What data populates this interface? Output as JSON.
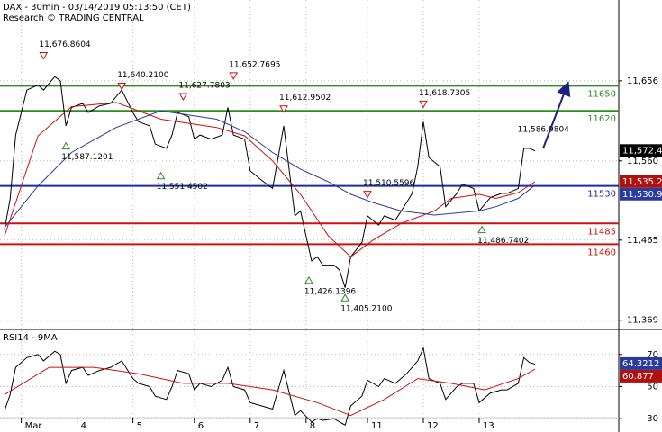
{
  "chart_data": [
    {
      "type": "line",
      "title": "DAX - 30min - 03/14/2019 05:13:50 (CET)",
      "subtitle": "Research © TRADING CENTRAL",
      "xlim": [
        0,
        110
      ],
      "ylim": [
        11359,
        11753
      ],
      "grid": true,
      "yticks": [
        {
          "value": 11656,
          "label": "11,656"
        },
        {
          "value": 11560,
          "label": "11,560"
        },
        {
          "value": 11465,
          "label": "11,465"
        },
        {
          "value": 11369,
          "label": "11,369"
        }
      ],
      "xticks": [
        {
          "value": 3,
          "label": "Mar"
        },
        {
          "value": 13,
          "label": "4"
        },
        {
          "value": 23,
          "label": "5"
        },
        {
          "value": 34,
          "label": "6"
        },
        {
          "value": 44,
          "label": "7"
        },
        {
          "value": 54,
          "label": "8"
        },
        {
          "value": 65,
          "label": "11"
        },
        {
          "value": 75,
          "label": "12"
        },
        {
          "value": 85,
          "label": "13"
        }
      ],
      "series": [
        {
          "color": "#000000",
          "x": [
            0,
            1,
            2,
            4,
            6,
            7,
            9,
            10,
            11,
            12,
            14,
            15,
            17,
            19,
            21,
            23,
            24,
            26,
            27,
            29,
            30,
            31,
            33,
            34,
            35,
            37,
            39,
            40,
            41,
            43,
            44,
            46,
            48,
            49,
            50,
            52,
            53,
            55,
            56,
            57,
            59,
            60,
            61,
            62,
            64,
            65,
            67,
            68,
            70,
            72,
            73,
            74,
            75,
            76,
            78,
            79,
            81,
            82,
            84,
            85,
            87,
            89,
            90,
            92,
            93,
            94,
            95
          ],
          "values": [
            11478,
            11514,
            11591,
            11645,
            11651,
            11645,
            11661,
            11656,
            11602,
            11624,
            11629,
            11618,
            11626,
            11629,
            11645,
            11618,
            11607,
            11602,
            11580,
            11575,
            11591,
            11618,
            11613,
            11586,
            11591,
            11586,
            11591,
            11624,
            11591,
            11586,
            11548,
            11537,
            11527,
            11564,
            11602,
            11494,
            11500,
            11440,
            11445,
            11435,
            11435,
            11429,
            11408,
            11445,
            11462,
            11494,
            11483,
            11494,
            11489,
            11510,
            11521,
            11553,
            11607,
            11564,
            11553,
            11505,
            11521,
            11532,
            11527,
            11500,
            11516,
            11521,
            11521,
            11527,
            11575,
            11575,
            11572
          ]
        },
        {
          "color": "#cc1111",
          "x": [
            0,
            6,
            12,
            20,
            28,
            38,
            43,
            48,
            53,
            58,
            62,
            66,
            71,
            77,
            80,
            85,
            88,
            92,
            95
          ],
          "values": [
            11470,
            11590,
            11625,
            11630,
            11610,
            11600,
            11590,
            11560,
            11520,
            11470,
            11445,
            11465,
            11485,
            11500,
            11515,
            11520,
            11515,
            11522,
            11535
          ]
        },
        {
          "color": "#2b3a9e",
          "x": [
            0,
            6,
            12,
            20,
            28,
            38,
            43,
            48,
            53,
            58,
            62,
            66,
            71,
            77,
            80,
            85,
            88,
            92,
            95
          ],
          "values": [
            11480,
            11530,
            11570,
            11600,
            11620,
            11610,
            11595,
            11570,
            11550,
            11535,
            11520,
            11510,
            11500,
            11495,
            11497,
            11500,
            11505,
            11515,
            11531
          ]
        }
      ],
      "levels": [
        {
          "value": 11650,
          "color": "#2e8b22"
        },
        {
          "value": 11620,
          "color": "#2e8b22"
        },
        {
          "value": 11530,
          "color": "#1a2aa8"
        },
        {
          "value": 11485,
          "color": "#d01010"
        },
        {
          "value": 11460,
          "color": "#d01010"
        }
      ],
      "annotations": [
        {
          "x": 7,
          "value": 11676.8604,
          "label": "11,676.8604",
          "kind": "high"
        },
        {
          "x": 11,
          "value": 11587.1201,
          "label": "11,587.1201",
          "kind": "low"
        },
        {
          "x": 21,
          "value": 11640.21,
          "label": "11,640.2100",
          "kind": "high"
        },
        {
          "x": 28,
          "value": 11551.4502,
          "label": "11,551.4502",
          "kind": "low"
        },
        {
          "x": 32,
          "value": 11627.7803,
          "label": "11,627.7803",
          "kind": "high"
        },
        {
          "x": 41,
          "value": 11652.7695,
          "label": "11,652.7695",
          "kind": "high"
        },
        {
          "x": 50,
          "value": 11612.9502,
          "label": "11,612.9502",
          "kind": "high"
        },
        {
          "x": 54.5,
          "value": 11426.1396,
          "label": "11,426.1396",
          "kind": "low"
        },
        {
          "x": 61,
          "value": 11405.21,
          "label": "11,405.2100",
          "kind": "low"
        },
        {
          "x": 65,
          "value": 11510.5596,
          "label": "11,510.5596",
          "kind": "high"
        },
        {
          "x": 75,
          "value": 11618.7305,
          "label": "11,618.7305",
          "kind": "high"
        },
        {
          "x": 85.5,
          "value": 11486.7402,
          "label": "11,486.7402",
          "kind": "low"
        },
        {
          "x": 96.5,
          "value": 11586.9804,
          "label": "11,586.9804",
          "kind": "note"
        }
      ],
      "price_tags": [
        {
          "value": 11572.4,
          "label": "11,572.4",
          "color": "#000000"
        },
        {
          "value": 11535.2,
          "label": "11,535.2",
          "color": "#b01010"
        },
        {
          "value": 11530.9,
          "label": "11,530.9",
          "color": "#2b3a9e"
        }
      ]
    },
    {
      "type": "line",
      "title": "RSI14 - 9MA",
      "xlim": [
        0,
        110
      ],
      "ylim": [
        21.7,
        85
      ],
      "grid": true,
      "yticks": [
        70,
        50,
        30
      ],
      "series": [
        {
          "color": "#000000",
          "x": [
            0,
            1,
            2,
            4,
            6,
            7,
            9,
            10,
            11,
            12,
            14,
            15,
            17,
            19,
            21,
            23,
            24,
            26,
            27,
            29,
            30,
            31,
            33,
            34,
            35,
            37,
            39,
            40,
            41,
            43,
            44,
            46,
            48,
            49,
            50,
            52,
            53,
            55,
            56,
            57,
            59,
            60,
            61,
            62,
            64,
            65,
            67,
            68,
            70,
            72,
            73,
            74,
            75,
            76,
            78,
            79,
            81,
            82,
            84,
            85,
            87,
            89,
            90,
            92,
            93,
            94,
            95
          ],
          "values": [
            35,
            45,
            62,
            68,
            70,
            66,
            72,
            70,
            52,
            60,
            62,
            57,
            60,
            62,
            66,
            55,
            52,
            50,
            44,
            42,
            50,
            60,
            58,
            48,
            52,
            50,
            54,
            62,
            50,
            48,
            40,
            38,
            36,
            48,
            60,
            32,
            35,
            28,
            30,
            29,
            30,
            28,
            26,
            38,
            44,
            54,
            50,
            55,
            52,
            58,
            62,
            66,
            74,
            55,
            52,
            42,
            50,
            52,
            52,
            40,
            46,
            48,
            48,
            52,
            68,
            65,
            64
          ]
        },
        {
          "color": "#cc1111",
          "x": [
            0,
            8,
            16,
            24,
            32,
            40,
            48,
            56,
            62,
            68,
            74,
            80,
            86,
            92,
            95
          ],
          "values": [
            45,
            62,
            62,
            58,
            52,
            52,
            48,
            40,
            32,
            42,
            55,
            52,
            48,
            55,
            60.877
          ]
        }
      ],
      "price_tags": [
        {
          "value": 64.3212,
          "label": "64.3212",
          "color": "#2b3a9e"
        },
        {
          "value": 60.877,
          "label": "60.877",
          "color": "#b01010"
        }
      ]
    }
  ]
}
